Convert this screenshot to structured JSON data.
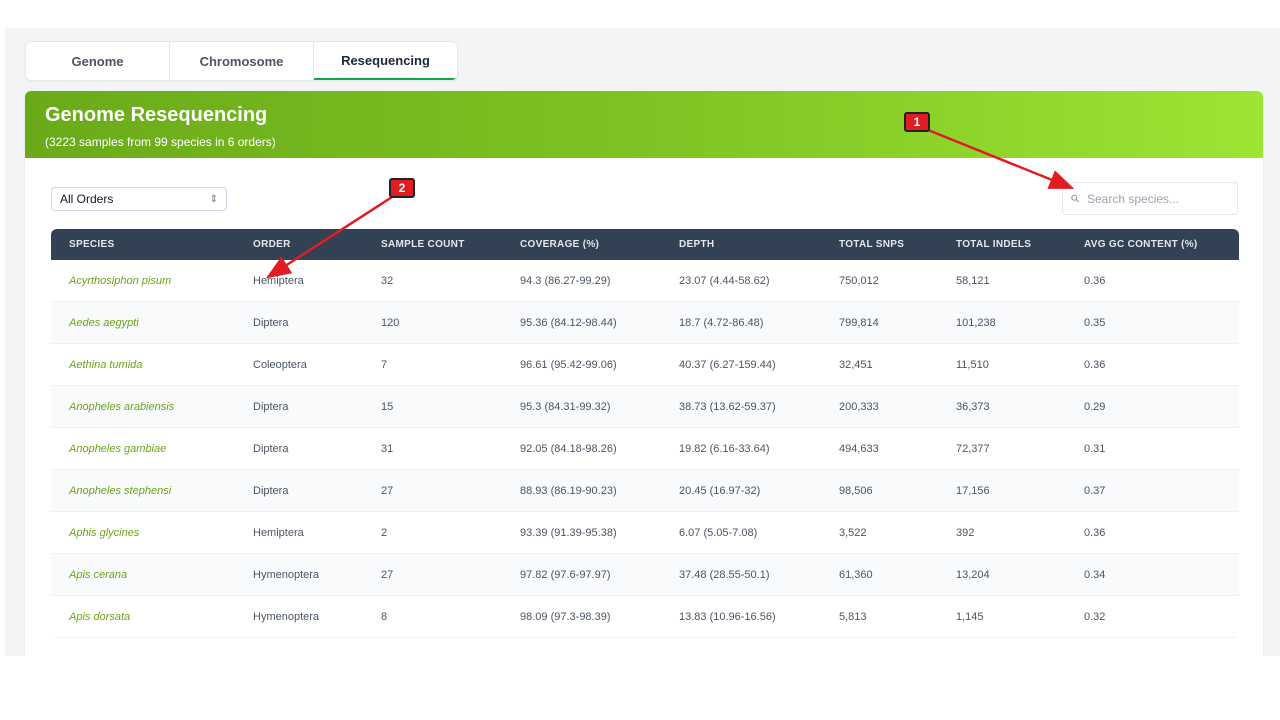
{
  "tabs": [
    {
      "label": "Genome",
      "active": false
    },
    {
      "label": "Chromosome",
      "active": false
    },
    {
      "label": "Resequencing",
      "active": true
    }
  ],
  "header": {
    "title": "Genome Resequencing",
    "subtitle": "(3223 samples from 99 species in 6 orders)"
  },
  "filter": {
    "selected": "All Orders"
  },
  "search": {
    "placeholder": "Search species..."
  },
  "table": {
    "columns": [
      "SPECIES",
      "ORDER",
      "SAMPLE COUNT",
      "COVERAGE (%)",
      "DEPTH",
      "TOTAL SNPS",
      "TOTAL INDELS",
      "AVG GC CONTENT (%)"
    ],
    "rows": [
      [
        "Acyrthosiphon pisum",
        "Hemiptera",
        "32",
        "94.3 (86.27-99.29)",
        "23.07 (4.44-58.62)",
        "750,012",
        "58,121",
        "0.36"
      ],
      [
        "Aedes aegypti",
        "Diptera",
        "120",
        "95.36 (84.12-98.44)",
        "18.7 (4.72-86.48)",
        "799,814",
        "101,238",
        "0.35"
      ],
      [
        "Aethina tumida",
        "Coleoptera",
        "7",
        "96.61 (95.42-99.06)",
        "40.37 (6.27-159.44)",
        "32,451",
        "11,510",
        "0.36"
      ],
      [
        "Anopheles arabiensis",
        "Diptera",
        "15",
        "95.3 (84.31-99.32)",
        "38.73 (13.62-59.37)",
        "200,333",
        "36,373",
        "0.29"
      ],
      [
        "Anopheles gambiae",
        "Diptera",
        "31",
        "92.05 (84.18-98.26)",
        "19.82 (6.16-33.64)",
        "494,633",
        "72,377",
        "0.31"
      ],
      [
        "Anopheles stephensi",
        "Diptera",
        "27",
        "88.93 (86.19-90.23)",
        "20.45 (16.97-32)",
        "98,506",
        "17,156",
        "0.37"
      ],
      [
        "Aphis glycines",
        "Hemiptera",
        "2",
        "93.39 (91.39-95.38)",
        "6.07 (5.05-7.08)",
        "3,522",
        "392",
        "0.36"
      ],
      [
        "Apis cerana",
        "Hymenoptera",
        "27",
        "97.82 (97.6-97.97)",
        "37.48 (28.55-50.1)",
        "61,360",
        "13,204",
        "0.34"
      ],
      [
        "Apis dorsata",
        "Hymenoptera",
        "8",
        "98.09 (97.3-98.39)",
        "13.83 (10.96-16.56)",
        "5,813",
        "1,145",
        "0.32"
      ]
    ]
  },
  "annotations": [
    {
      "label": "1"
    },
    {
      "label": "2"
    }
  ],
  "colors": {
    "accent": "#7ec322",
    "header_dark": "#334155",
    "species_text": "#6aa318",
    "annotation_red": "#e11d24"
  }
}
